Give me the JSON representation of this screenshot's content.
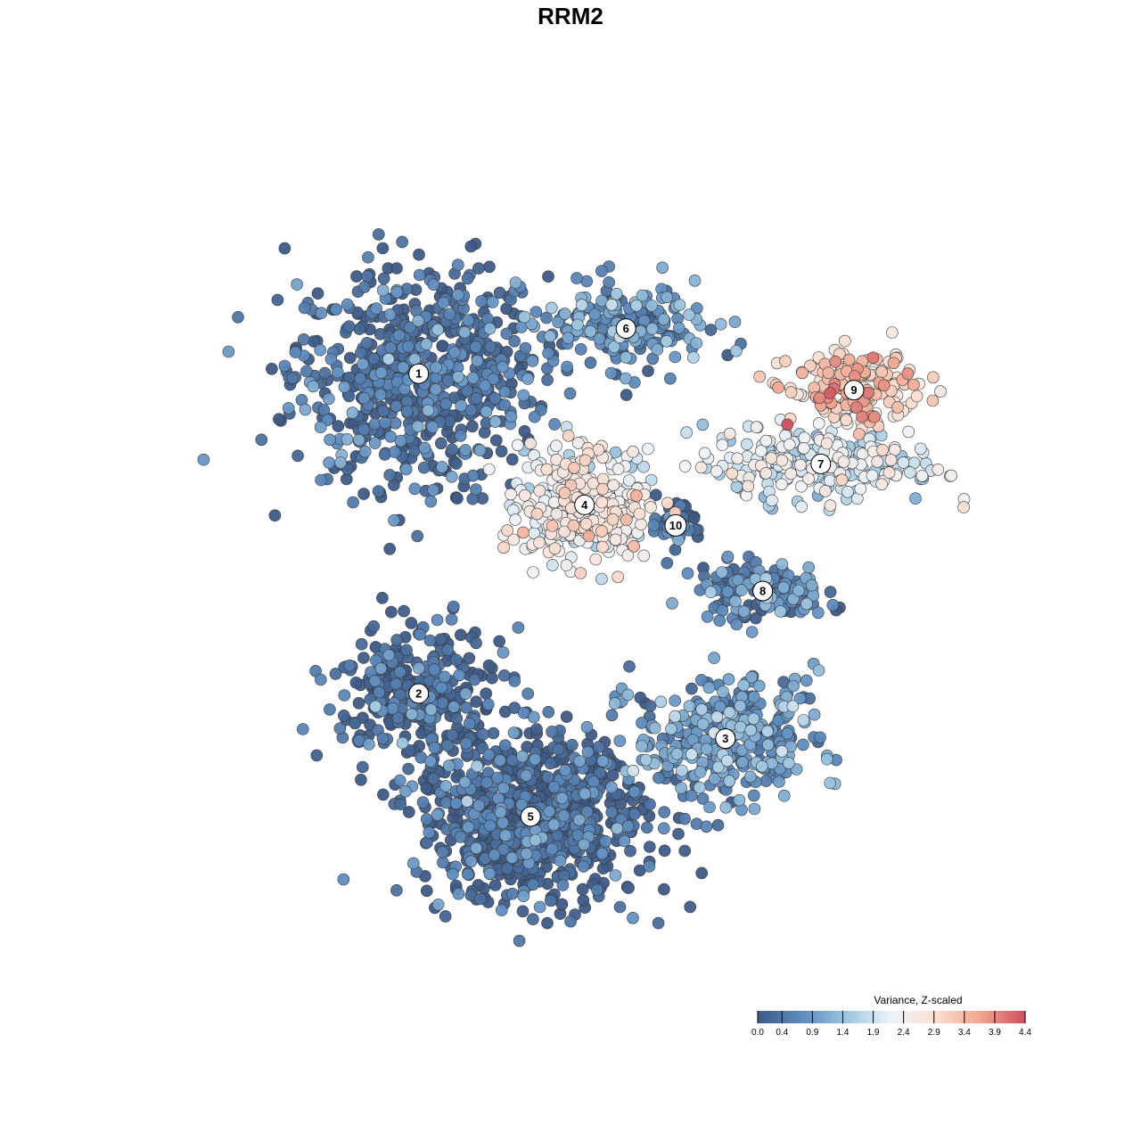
{
  "chart_data": {
    "type": "scatter",
    "title": "RRM2",
    "xlabel": "",
    "ylabel": "",
    "grid": false,
    "axes_visible": false,
    "xlim": [
      -10,
      10
    ],
    "ylim": [
      -10,
      10
    ],
    "colorbar": {
      "title": "Variance, Z-scaled",
      "placement": "bottom-right",
      "range": [
        0.0,
        4.4
      ],
      "ticks": [
        "0.0",
        "0.4",
        "0.9",
        "1.4",
        "1.9",
        "2.4",
        "2.9",
        "3.4",
        "3.9",
        "4.4"
      ],
      "colors": [
        "#3d5b87",
        "#5d8cbf",
        "#9dc7e0",
        "#eef3f7",
        "#fbe0d2",
        "#f0a58e",
        "#cf4f5f"
      ]
    },
    "clusters": [
      {
        "label": "1",
        "x": -4.2,
        "y": 4.8,
        "sx": 1.8,
        "sy": 1.6,
        "v": 0.2,
        "n": 700
      },
      {
        "label": "6",
        "x": 0.8,
        "y": 5.9,
        "sx": 1.2,
        "sy": 0.6,
        "v": 0.7,
        "n": 200
      },
      {
        "label": "4",
        "x": -0.2,
        "y": 1.6,
        "sx": 0.9,
        "sy": 0.8,
        "v": 2.3,
        "n": 350
      },
      {
        "label": "10",
        "x": 2.0,
        "y": 1.1,
        "sx": 0.4,
        "sy": 0.4,
        "v": 0.3,
        "n": 40
      },
      {
        "label": "9",
        "x": 6.3,
        "y": 4.4,
        "sx": 0.9,
        "sy": 0.5,
        "v": 3.1,
        "n": 180
      },
      {
        "label": "7",
        "x": 5.5,
        "y": 2.6,
        "sx": 1.7,
        "sy": 0.6,
        "v": 2.0,
        "n": 220
      },
      {
        "label": "8",
        "x": 4.1,
        "y": -0.5,
        "sx": 0.9,
        "sy": 0.4,
        "v": 0.5,
        "n": 150
      },
      {
        "label": "2",
        "x": -4.2,
        "y": -3.0,
        "sx": 1.2,
        "sy": 0.9,
        "v": 0.1,
        "n": 320
      },
      {
        "label": "3",
        "x": 3.2,
        "y": -4.1,
        "sx": 1.3,
        "sy": 0.9,
        "v": 0.8,
        "n": 350
      },
      {
        "label": "5",
        "x": -1.5,
        "y": -6.0,
        "sx": 1.6,
        "sy": 1.2,
        "v": 0.1,
        "n": 800
      }
    ]
  }
}
